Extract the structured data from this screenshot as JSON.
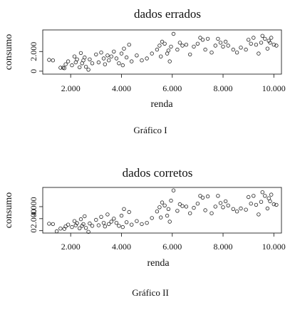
{
  "chart_data": [
    {
      "type": "scatter",
      "title": "dados errados",
      "xlabel": "renda",
      "ylabel": "consumo",
      "caption": "Gráfico I",
      "xlim": [
        900,
        10300
      ],
      "ylim": [
        -300,
        4200
      ],
      "xticks": [
        2000,
        4000,
        6000,
        8000,
        10000
      ],
      "xtick_labels": [
        "2.000",
        "4.000",
        "6.000",
        "8.000",
        "10.000"
      ],
      "yticks": [
        0,
        2000
      ],
      "ytick_labels": [
        "0",
        "2.000"
      ],
      "grid": false,
      "legend": "none",
      "marker": "open-circle",
      "points": [
        [
          1150,
          1150
        ],
        [
          1300,
          1100
        ],
        [
          1600,
          350
        ],
        [
          1700,
          350
        ],
        [
          1750,
          300
        ],
        [
          1800,
          700
        ],
        [
          1900,
          1000
        ],
        [
          2050,
          600
        ],
        [
          2150,
          1500
        ],
        [
          2200,
          900
        ],
        [
          2250,
          1200
        ],
        [
          2350,
          400
        ],
        [
          2400,
          1850
        ],
        [
          2450,
          800
        ],
        [
          2500,
          1100
        ],
        [
          2550,
          1400
        ],
        [
          2600,
          450
        ],
        [
          2700,
          150
        ],
        [
          2750,
          1200
        ],
        [
          2850,
          800
        ],
        [
          3000,
          1700
        ],
        [
          3100,
          900
        ],
        [
          3200,
          1900
        ],
        [
          3300,
          1300
        ],
        [
          3350,
          700
        ],
        [
          3450,
          1600
        ],
        [
          3500,
          1100
        ],
        [
          3600,
          1500
        ],
        [
          3700,
          2000
        ],
        [
          3800,
          1300
        ],
        [
          3900,
          800
        ],
        [
          4000,
          1800
        ],
        [
          4050,
          600
        ],
        [
          4100,
          2300
        ],
        [
          4200,
          1400
        ],
        [
          4300,
          2700
        ],
        [
          4400,
          1000
        ],
        [
          4600,
          1600
        ],
        [
          4800,
          1100
        ],
        [
          5000,
          1300
        ],
        [
          5200,
          1800
        ],
        [
          5400,
          2200
        ],
        [
          5500,
          2600
        ],
        [
          5550,
          1500
        ],
        [
          5600,
          3000
        ],
        [
          5700,
          2800
        ],
        [
          5800,
          1800
        ],
        [
          5850,
          2100
        ],
        [
          5900,
          1000
        ],
        [
          5950,
          2500
        ],
        [
          6050,
          3800
        ],
        [
          6200,
          2200
        ],
        [
          6300,
          2900
        ],
        [
          6400,
          2600
        ],
        [
          6550,
          2700
        ],
        [
          6700,
          1700
        ],
        [
          6850,
          2500
        ],
        [
          7000,
          2800
        ],
        [
          7100,
          3400
        ],
        [
          7200,
          3200
        ],
        [
          7300,
          2200
        ],
        [
          7400,
          3300
        ],
        [
          7550,
          1900
        ],
        [
          7700,
          2600
        ],
        [
          7800,
          3300
        ],
        [
          7900,
          2900
        ],
        [
          8000,
          2500
        ],
        [
          8100,
          3000
        ],
        [
          8200,
          2600
        ],
        [
          8400,
          2200
        ],
        [
          8550,
          1900
        ],
        [
          8700,
          2400
        ],
        [
          8900,
          2200
        ],
        [
          9000,
          3200
        ],
        [
          9100,
          2800
        ],
        [
          9200,
          3400
        ],
        [
          9300,
          2700
        ],
        [
          9400,
          1800
        ],
        [
          9500,
          2900
        ],
        [
          9550,
          3600
        ],
        [
          9650,
          3300
        ],
        [
          9750,
          2300
        ],
        [
          9800,
          3100
        ],
        [
          9850,
          2900
        ],
        [
          9900,
          3400
        ],
        [
          10000,
          2700
        ],
        [
          10100,
          2600
        ]
      ]
    },
    {
      "type": "scatter",
      "title": "dados corretos",
      "xlabel": "renda",
      "ylabel": "consumo",
      "caption": "Gráfico II",
      "xlim": [
        900,
        10300
      ],
      "ylim": [
        -400,
        7200
      ],
      "xticks": [
        2000,
        4000,
        6000,
        8000,
        10000
      ],
      "xtick_labels": [
        "2.000",
        "4.000",
        "6.000",
        "8.000",
        "10.000"
      ],
      "yticks": [
        0,
        2000,
        4000
      ],
      "ytick_labels": [
        "0",
        "2.000",
        "4.000"
      ],
      "grid": false,
      "legend": "none",
      "marker": "open-circle",
      "points": [
        [
          1150,
          1150
        ],
        [
          1300,
          1100
        ],
        [
          1450,
          -100
        ],
        [
          1600,
          350
        ],
        [
          1750,
          300
        ],
        [
          1800,
          700
        ],
        [
          1900,
          1000
        ],
        [
          2050,
          600
        ],
        [
          2150,
          1600
        ],
        [
          2200,
          900
        ],
        [
          2250,
          1250
        ],
        [
          2350,
          400
        ],
        [
          2400,
          1900
        ],
        [
          2450,
          800
        ],
        [
          2500,
          1100
        ],
        [
          2550,
          2400
        ],
        [
          2600,
          450
        ],
        [
          2700,
          -200
        ],
        [
          2750,
          1200
        ],
        [
          2850,
          800
        ],
        [
          3000,
          1800
        ],
        [
          3100,
          900
        ],
        [
          3200,
          2300
        ],
        [
          3300,
          1300
        ],
        [
          3350,
          700
        ],
        [
          3450,
          2700
        ],
        [
          3500,
          1100
        ],
        [
          3600,
          1500
        ],
        [
          3700,
          2000
        ],
        [
          3800,
          1300
        ],
        [
          3900,
          800
        ],
        [
          4000,
          2500
        ],
        [
          4050,
          600
        ],
        [
          4100,
          3600
        ],
        [
          4200,
          1400
        ],
        [
          4300,
          3100
        ],
        [
          4400,
          1000
        ],
        [
          4600,
          1600
        ],
        [
          4800,
          1100
        ],
        [
          5000,
          1300
        ],
        [
          5200,
          2100
        ],
        [
          5400,
          3200
        ],
        [
          5500,
          3900
        ],
        [
          5550,
          2200
        ],
        [
          5600,
          4700
        ],
        [
          5700,
          4200
        ],
        [
          5800,
          2500
        ],
        [
          5850,
          3600
        ],
        [
          5900,
          1500
        ],
        [
          5950,
          5000
        ],
        [
          6050,
          6700
        ],
        [
          6200,
          3300
        ],
        [
          6300,
          4400
        ],
        [
          6400,
          4100
        ],
        [
          6550,
          4000
        ],
        [
          6700,
          2900
        ],
        [
          6850,
          3800
        ],
        [
          7000,
          4500
        ],
        [
          7100,
          5800
        ],
        [
          7200,
          5500
        ],
        [
          7300,
          3400
        ],
        [
          7400,
          5700
        ],
        [
          7550,
          2900
        ],
        [
          7700,
          4000
        ],
        [
          7800,
          5800
        ],
        [
          7900,
          4600
        ],
        [
          8000,
          3900
        ],
        [
          8100,
          4900
        ],
        [
          8200,
          4200
        ],
        [
          8400,
          3600
        ],
        [
          8550,
          3200
        ],
        [
          8700,
          3700
        ],
        [
          8900,
          3500
        ],
        [
          9000,
          5600
        ],
        [
          9100,
          4500
        ],
        [
          9200,
          5800
        ],
        [
          9300,
          4300
        ],
        [
          9400,
          2700
        ],
        [
          9500,
          4800
        ],
        [
          9550,
          6400
        ],
        [
          9650,
          5800
        ],
        [
          9750,
          3700
        ],
        [
          9800,
          5400
        ],
        [
          9850,
          4900
        ],
        [
          9900,
          6000
        ],
        [
          10000,
          4400
        ],
        [
          10100,
          4300
        ]
      ]
    }
  ]
}
